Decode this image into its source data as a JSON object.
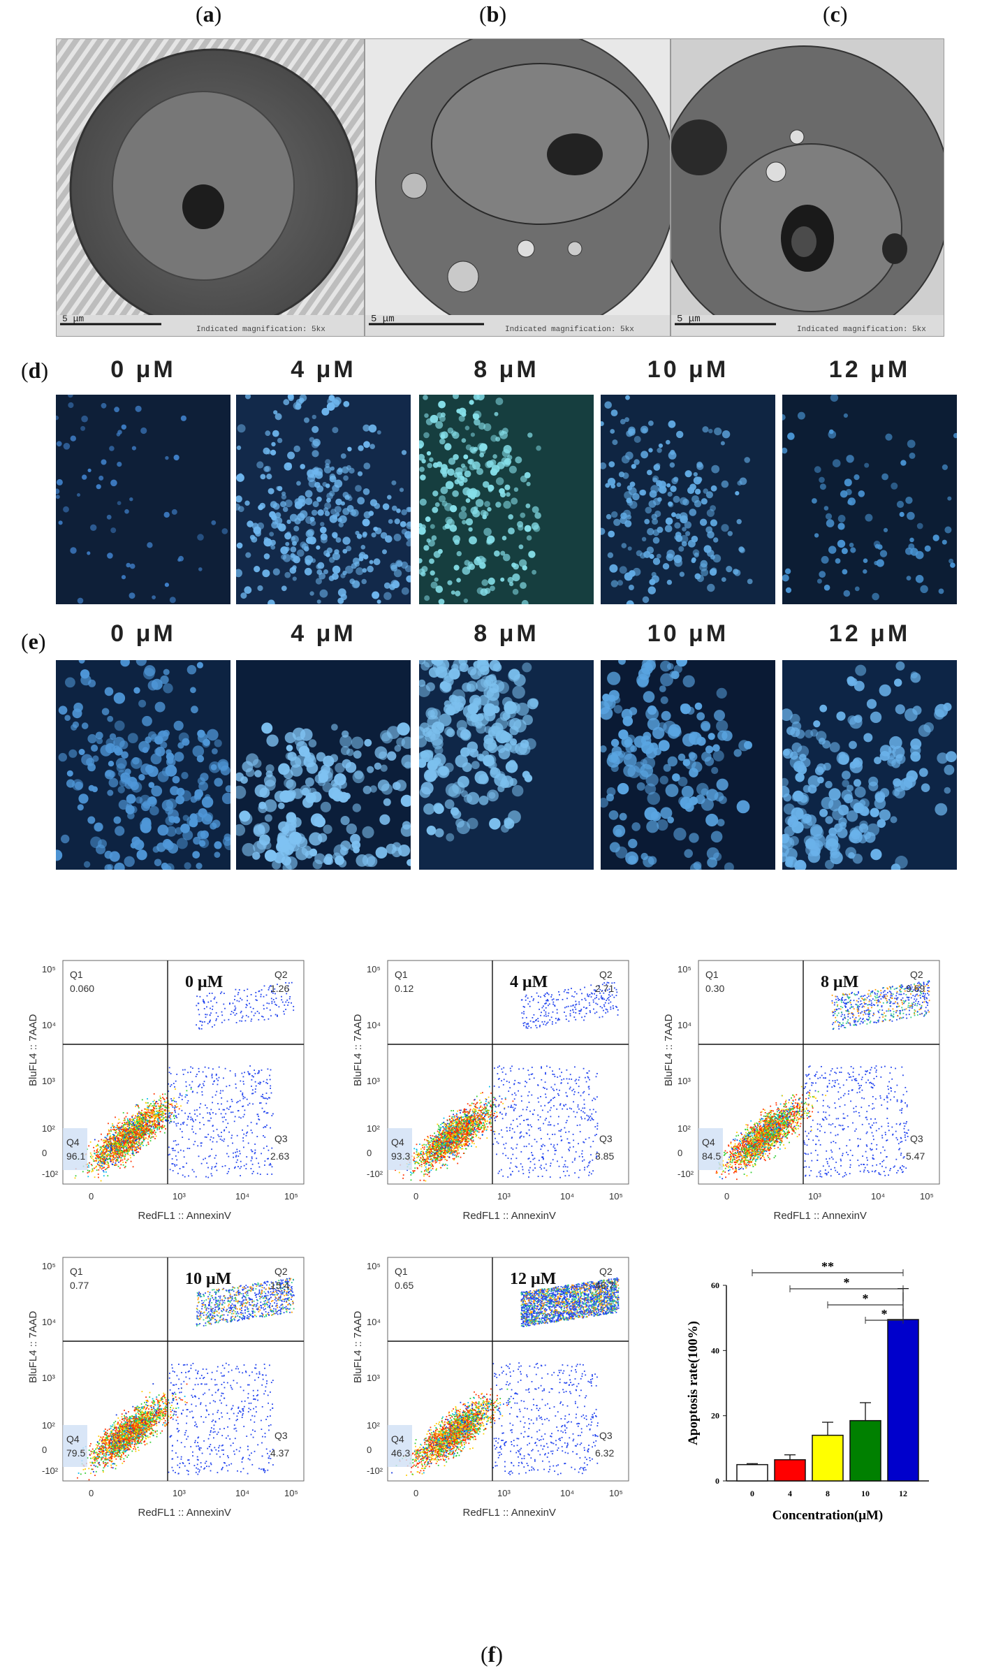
{
  "panels": {
    "a": {
      "label": "a"
    },
    "b": {
      "label": "b"
    },
    "c": {
      "label": "c"
    },
    "d": {
      "label": "d"
    },
    "e": {
      "label": "e"
    },
    "f": {
      "label": "f"
    }
  },
  "tem": [
    {
      "scale_label": "5 μm",
      "caption": "Indicated magnification: 5kx"
    },
    {
      "scale_label": "5 μm",
      "caption": "Indicated magnification: 5kx"
    },
    {
      "scale_label": "5 μm",
      "caption": "Indicated magnification: 5kx"
    }
  ],
  "concentrations": [
    "0 μM",
    "4 μM",
    "8 μM",
    "10 μM",
    "12 μM"
  ],
  "flow": {
    "xlabel": "RedFL1 :: AnnexinV",
    "ylabel": "BluFL4 :: 7AAD",
    "x_ticks": [
      "0",
      "10³",
      "10⁴",
      "10⁵"
    ],
    "y_ticks": [
      "10⁵",
      "10⁴",
      "10³",
      "10²",
      "0",
      "-10²"
    ],
    "plots": [
      {
        "conc": "0 μM",
        "q1": "0.060",
        "q2": "1.26",
        "q3": "2.63",
        "q4": "96.1"
      },
      {
        "conc": "4 μM",
        "q1": "0.12",
        "q2": "2.71",
        "q3": "3.85",
        "q4": "93.3"
      },
      {
        "conc": "8 μM",
        "q1": "0.30",
        "q2": "9.69",
        "q3": "5.47",
        "q4": "84.5"
      },
      {
        "conc": "10 μM",
        "q1": "0.77",
        "q2": "15.4",
        "q3": "4.37",
        "q4": "79.5"
      },
      {
        "conc": "12 μM",
        "q1": "0.65",
        "q2": "46.7",
        "q3": "6.32",
        "q4": "46.3"
      }
    ]
  },
  "chart_data": {
    "type": "bar",
    "categories": [
      "0",
      "4",
      "8",
      "10",
      "12"
    ],
    "values": [
      5,
      6.5,
      14,
      18.5,
      49.5
    ],
    "errors": [
      0.3,
      1.5,
      4,
      5.5,
      9.5
    ],
    "colors": [
      "#ffffff",
      "#ff0000",
      "#ffff00",
      "#008000",
      "#0000cc"
    ],
    "xlabel": "Concentration(μM)",
    "ylabel": "Apoptosis rate(100%)",
    "ylim": [
      0,
      60
    ],
    "y_ticks": [
      "0",
      "20",
      "40",
      "60"
    ],
    "significance": [
      "**",
      "*",
      "*",
      "*"
    ]
  }
}
